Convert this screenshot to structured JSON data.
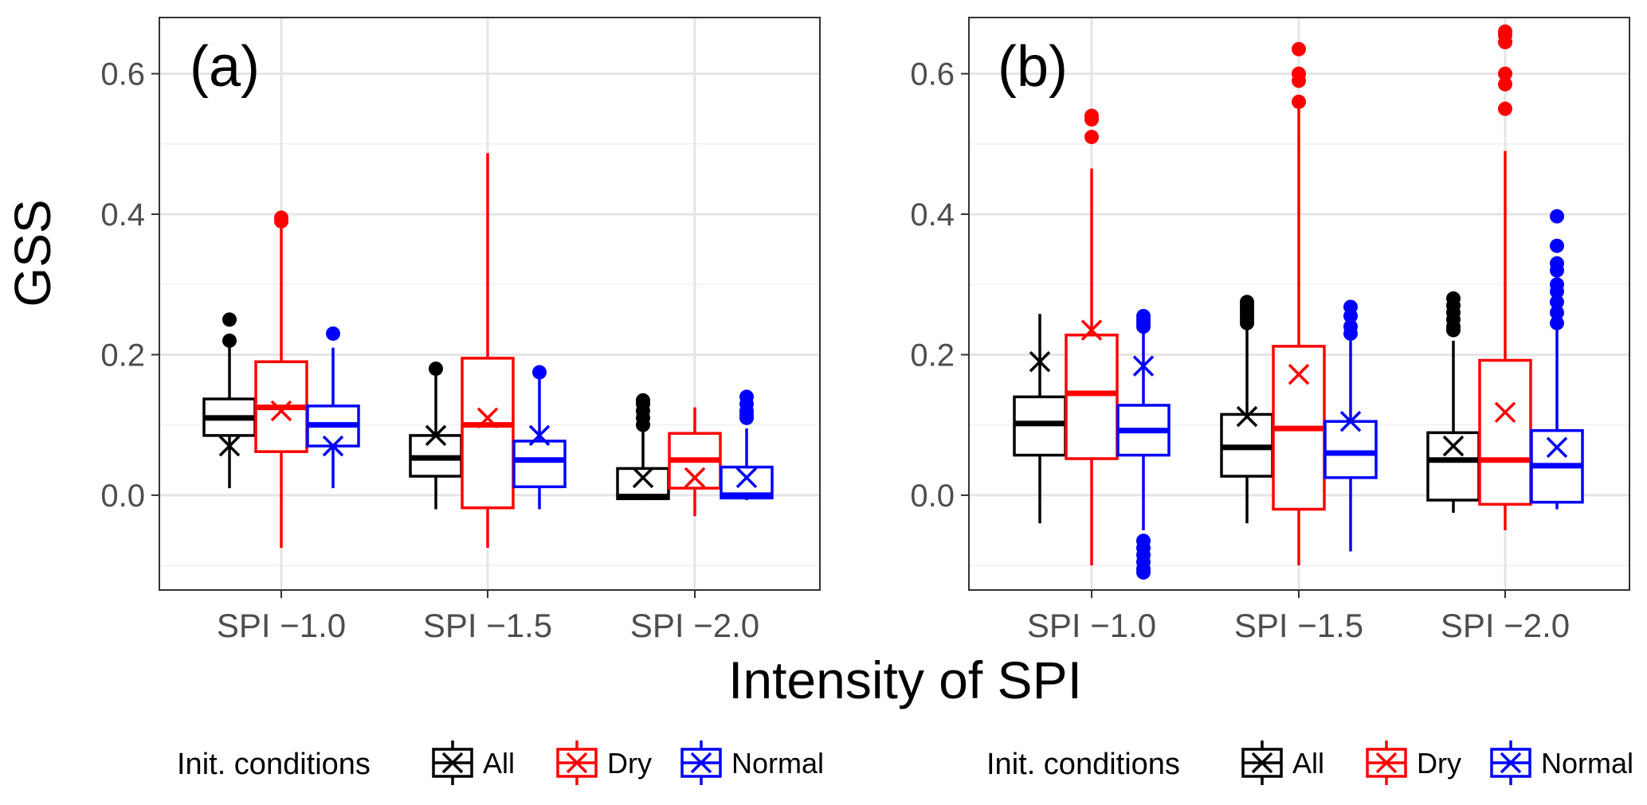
{
  "figure": {
    "ylabel": "GSS",
    "xlabel": "Intensity of SPI"
  },
  "legend": {
    "title": "Init. conditions",
    "entries": [
      {
        "label": "All",
        "color": "#000000"
      },
      {
        "label": "Dry",
        "color": "#ff0000"
      },
      {
        "label": "Normal",
        "color": "#0000ff"
      }
    ]
  },
  "chart_data": [
    {
      "type": "boxplot",
      "panel_label": "(a)",
      "categories": [
        "SPI −1.0",
        "SPI −1.5",
        "SPI −2.0"
      ],
      "ylim": [
        -0.135,
        0.68
      ],
      "yticks": [
        0.0,
        0.2,
        0.4,
        0.6
      ],
      "ytick_labels": [
        "0.0",
        "0.2",
        "0.4",
        "0.6"
      ],
      "grid": true,
      "series": [
        {
          "name": "All",
          "color": "#000000",
          "boxes": [
            {
              "lo": 0.01,
              "q1": 0.085,
              "med": 0.11,
              "q3": 0.137,
              "hi": 0.21,
              "mean": 0.07,
              "outliers": [
                0.22,
                0.25
              ]
            },
            {
              "lo": -0.02,
              "q1": 0.027,
              "med": 0.053,
              "q3": 0.085,
              "hi": 0.17,
              "mean": 0.085,
              "outliers": [
                0.18
              ]
            },
            {
              "lo": -0.007,
              "q1": -0.005,
              "med": -0.002,
              "q3": 0.038,
              "hi": 0.095,
              "mean": 0.025,
              "outliers": [
                0.1,
                0.11,
                0.12,
                0.13,
                0.135
              ]
            }
          ]
        },
        {
          "name": "Dry",
          "color": "#ff0000",
          "boxes": [
            {
              "lo": -0.075,
              "q1": 0.062,
              "med": 0.125,
              "q3": 0.19,
              "hi": 0.385,
              "mean": 0.12,
              "outliers": [
                0.39,
                0.395
              ]
            },
            {
              "lo": -0.075,
              "q1": -0.018,
              "med": 0.1,
              "q3": 0.195,
              "hi": 0.487,
              "mean": 0.11,
              "outliers": []
            },
            {
              "lo": -0.03,
              "q1": 0.01,
              "med": 0.05,
              "q3": 0.088,
              "hi": 0.125,
              "mean": 0.025,
              "outliers": []
            }
          ]
        },
        {
          "name": "Normal",
          "color": "#0000ff",
          "boxes": [
            {
              "lo": 0.01,
              "q1": 0.07,
              "med": 0.1,
              "q3": 0.127,
              "hi": 0.21,
              "mean": 0.07,
              "outliers": [
                0.23
              ]
            },
            {
              "lo": -0.02,
              "q1": 0.012,
              "med": 0.05,
              "q3": 0.077,
              "hi": 0.165,
              "mean": 0.085,
              "outliers": [
                0.175
              ]
            },
            {
              "lo": -0.007,
              "q1": -0.004,
              "med": 0.0,
              "q3": 0.04,
              "hi": 0.095,
              "mean": 0.025,
              "outliers": [
                0.11,
                0.115,
                0.12,
                0.13,
                0.14
              ]
            }
          ]
        }
      ]
    },
    {
      "type": "boxplot",
      "panel_label": "(b)",
      "categories": [
        "SPI −1.0",
        "SPI −1.5",
        "SPI −2.0"
      ],
      "ylim": [
        -0.135,
        0.68
      ],
      "yticks": [
        0.0,
        0.2,
        0.4,
        0.6
      ],
      "ytick_labels": [
        "0.0",
        "0.2",
        "0.4",
        "0.6"
      ],
      "grid": true,
      "series": [
        {
          "name": "All",
          "color": "#000000",
          "boxes": [
            {
              "lo": -0.04,
              "q1": 0.057,
              "med": 0.102,
              "q3": 0.14,
              "hi": 0.258,
              "mean": 0.19,
              "outliers": []
            },
            {
              "lo": -0.04,
              "q1": 0.027,
              "med": 0.068,
              "q3": 0.115,
              "hi": 0.24,
              "mean": 0.112,
              "outliers": [
                0.245,
                0.25,
                0.255,
                0.26,
                0.265,
                0.27,
                0.275
              ]
            },
            {
              "lo": -0.025,
              "q1": -0.007,
              "med": 0.05,
              "q3": 0.089,
              "hi": 0.22,
              "mean": 0.07,
              "outliers": [
                0.235,
                0.24,
                0.25,
                0.26,
                0.27,
                0.28
              ]
            }
          ]
        },
        {
          "name": "Dry",
          "color": "#ff0000",
          "boxes": [
            {
              "lo": -0.1,
              "q1": 0.052,
              "med": 0.145,
              "q3": 0.228,
              "hi": 0.465,
              "mean": 0.235,
              "outliers": [
                0.51,
                0.535,
                0.54
              ]
            },
            {
              "lo": -0.1,
              "q1": -0.02,
              "med": 0.095,
              "q3": 0.212,
              "hi": 0.55,
              "mean": 0.172,
              "outliers": [
                0.56,
                0.59,
                0.6,
                0.635
              ]
            },
            {
              "lo": -0.05,
              "q1": -0.013,
              "med": 0.05,
              "q3": 0.192,
              "hi": 0.49,
              "mean": 0.118,
              "outliers": [
                0.55,
                0.585,
                0.6,
                0.645,
                0.655,
                0.66
              ]
            }
          ]
        },
        {
          "name": "Normal",
          "color": "#0000ff",
          "boxes": [
            {
              "lo": -0.05,
              "q1": 0.057,
              "med": 0.092,
              "q3": 0.128,
              "hi": 0.235,
              "mean": 0.184,
              "outliers": [
                0.24,
                0.245,
                0.25,
                0.255,
                -0.065,
                -0.075,
                -0.085,
                -0.095,
                -0.105,
                -0.11
              ]
            },
            {
              "lo": -0.08,
              "q1": 0.025,
              "med": 0.06,
              "q3": 0.105,
              "hi": 0.22,
              "mean": 0.105,
              "outliers": [
                0.23,
                0.24,
                0.255,
                0.268
              ]
            },
            {
              "lo": -0.02,
              "q1": -0.01,
              "med": 0.042,
              "q3": 0.092,
              "hi": 0.235,
              "mean": 0.068,
              "outliers": [
                0.245,
                0.26,
                0.275,
                0.29,
                0.3,
                0.32,
                0.33,
                0.355,
                0.397
              ]
            }
          ]
        }
      ]
    }
  ]
}
